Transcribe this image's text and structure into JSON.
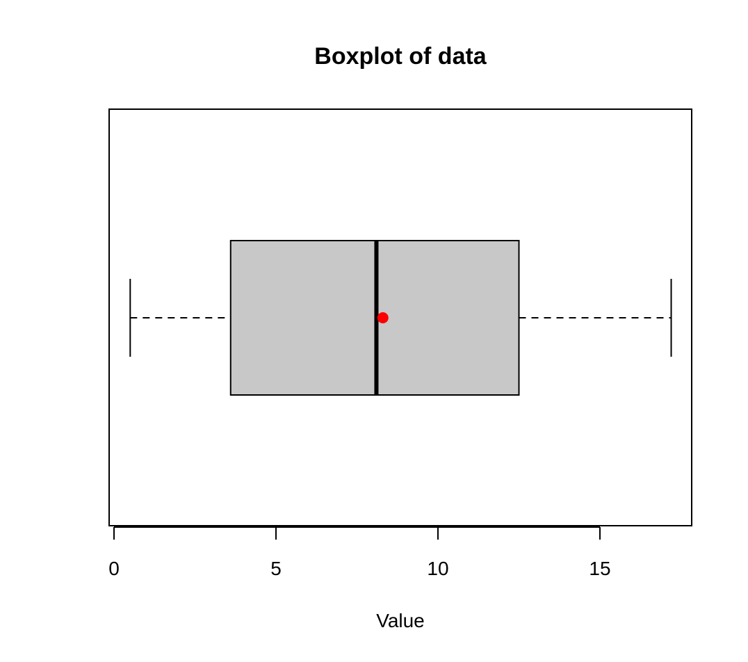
{
  "chart_data": {
    "type": "boxplot",
    "orientation": "horizontal",
    "title": "Boxplot of data",
    "xlabel": "Value",
    "ylabel": "",
    "xlim": [
      0,
      17.9
    ],
    "x_ticks": [
      0,
      5,
      10,
      15
    ],
    "tick_labels": [
      "0",
      "5",
      "10",
      "15"
    ],
    "grid": false,
    "box": {
      "min": 0.5,
      "q1": 3.6,
      "median": 8.1,
      "q3": 12.5,
      "max": 17.2,
      "mean": 8.3
    },
    "colors": {
      "box_fill": "#c8c8c8",
      "mean_point": "#ff0000",
      "lines": "#000000"
    }
  }
}
